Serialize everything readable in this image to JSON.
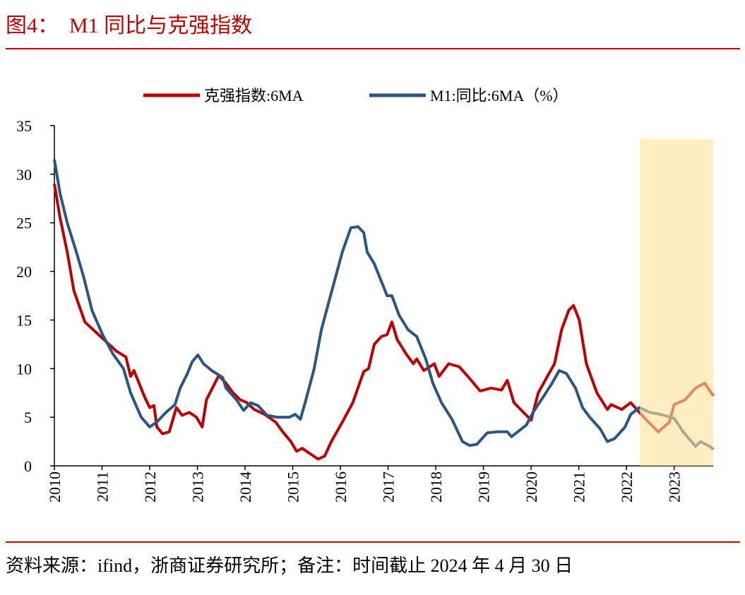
{
  "header": {
    "title": "图4：  M1 同比与克强指数"
  },
  "chart_data": {
    "type": "line",
    "series": [
      {
        "name": "克强指数:6MA",
        "color": "#c00000",
        "x": [
          2010.0,
          2010.12,
          2010.27,
          2010.41,
          2010.64,
          2010.86,
          2011.08,
          2011.3,
          2011.5,
          2011.6,
          2011.67,
          2011.9,
          2012.0,
          2012.09,
          2012.15,
          2012.27,
          2012.41,
          2012.56,
          2012.68,
          2012.83,
          2012.98,
          2013.1,
          2013.19,
          2013.45,
          2013.6,
          2013.75,
          2013.9,
          2014.04,
          2014.19,
          2014.41,
          2014.64,
          2014.79,
          2014.96,
          2015.08,
          2015.2,
          2015.38,
          2015.53,
          2015.67,
          2015.81,
          2016.04,
          2016.26,
          2016.49,
          2016.59,
          2016.71,
          2016.86,
          2016.98,
          2017.08,
          2017.19,
          2017.38,
          2017.53,
          2017.6,
          2017.75,
          2017.97,
          2018.07,
          2018.27,
          2018.49,
          2018.71,
          2018.93,
          2019.16,
          2019.38,
          2019.5,
          2019.64,
          2019.9,
          2020.0,
          2020.15,
          2020.34,
          2020.49,
          2020.64,
          2020.79,
          2020.89,
          2021.01,
          2021.16,
          2021.38,
          2021.6,
          2021.68,
          2021.9,
          2022.09,
          2022.27,
          2022.46,
          2022.67,
          2022.9,
          2023.0,
          2023.23,
          2023.45,
          2023.64,
          2023.82
        ],
        "values": [
          29,
          25.5,
          22,
          18,
          14.8,
          13.8,
          12.8,
          11.8,
          11.2,
          9.2,
          9.8,
          7,
          6,
          6.2,
          4,
          3.3,
          3.5,
          6,
          5.2,
          5.5,
          5,
          4,
          6.8,
          9.3,
          8.5,
          7.5,
          6.8,
          6.5,
          5.8,
          5.3,
          4.5,
          3.5,
          2.5,
          1.5,
          1.8,
          1.2,
          0.7,
          1,
          2.5,
          4.5,
          6.5,
          9.7,
          10,
          12.5,
          13.3,
          13.5,
          14.8,
          13,
          11.5,
          10.5,
          11,
          9.8,
          10.5,
          9.2,
          10.5,
          10.2,
          9,
          7.7,
          8,
          7.8,
          8.8,
          6.5,
          5.2,
          4.7,
          7.5,
          9.2,
          10.5,
          14,
          16,
          16.5,
          15,
          10.5,
          7.5,
          5.8,
          6.3,
          5.8,
          6.5,
          5.5,
          4.5,
          3.5,
          4.5,
          6.3,
          6.8,
          8,
          8.5,
          7.2
        ]
      },
      {
        "name": "M1:同比:6MA（%）",
        "color": "#2b5582",
        "x": [
          2010.0,
          2010.12,
          2010.27,
          2010.46,
          2010.61,
          2010.79,
          2011.01,
          2011.23,
          2011.45,
          2011.6,
          2011.82,
          2012.0,
          2012.15,
          2012.34,
          2012.53,
          2012.64,
          2012.79,
          2012.89,
          2013.01,
          2013.13,
          2013.3,
          2013.53,
          2013.6,
          2013.82,
          2013.97,
          2014.12,
          2014.27,
          2014.46,
          2014.67,
          2014.93,
          2015.05,
          2015.16,
          2015.26,
          2015.45,
          2015.6,
          2015.82,
          2016.04,
          2016.22,
          2016.37,
          2016.49,
          2016.56,
          2016.71,
          2016.98,
          2017.08,
          2017.23,
          2017.42,
          2017.6,
          2017.79,
          2017.94,
          2018.12,
          2018.34,
          2018.56,
          2018.71,
          2018.86,
          2019.08,
          2019.3,
          2019.5,
          2019.59,
          2019.9,
          2020.04,
          2020.27,
          2020.44,
          2020.59,
          2020.74,
          2020.93,
          2021.08,
          2021.23,
          2021.45,
          2021.6,
          2021.75,
          2021.97,
          2022.09,
          2022.27,
          2022.49,
          2022.71,
          2023.0,
          2023.19,
          2023.45,
          2023.55,
          2023.75,
          2023.82
        ],
        "values": [
          31.5,
          28,
          25,
          22,
          19.5,
          16,
          13.5,
          11.5,
          10,
          7.5,
          5,
          4,
          4.5,
          5.5,
          6.3,
          8,
          9.5,
          10.7,
          11.4,
          10.5,
          9.8,
          9.1,
          8,
          6.8,
          5.7,
          6.5,
          6.2,
          5.2,
          5,
          5,
          5.3,
          4.8,
          6.5,
          10,
          14,
          18,
          22,
          24.5,
          24.6,
          24,
          22,
          20.8,
          17.5,
          17.5,
          15.5,
          14,
          13.3,
          11,
          8.5,
          6.5,
          4.8,
          2.5,
          2.1,
          2.2,
          3.4,
          3.5,
          3.5,
          3,
          4.2,
          5.5,
          7.2,
          8.5,
          9.8,
          9.5,
          8,
          6,
          5,
          3.8,
          2.5,
          2.8,
          4,
          5.3,
          6,
          5.5,
          5.3,
          4.9,
          3.5,
          2,
          2.5,
          2,
          1.7
        ]
      }
    ],
    "xlim": [
      2010,
      2023.82
    ],
    "xticks": [
      2010,
      2011,
      2012,
      2013,
      2014,
      2015,
      2016,
      2017,
      2018,
      2019,
      2020,
      2021,
      2022,
      2023
    ],
    "ylim": [
      0,
      35
    ],
    "yticks": [
      0,
      5,
      10,
      15,
      20,
      25,
      30,
      35
    ],
    "highlight": {
      "x": [
        2022.28,
        2023.82
      ],
      "y": [
        0,
        33.6
      ],
      "color": "#ffe299"
    },
    "legend": "top",
    "grid": false
  },
  "footer": {
    "source": "资料来源：ifind，浙商证券研究所；备注：时间截止 2024 年 4 月 30 日"
  }
}
